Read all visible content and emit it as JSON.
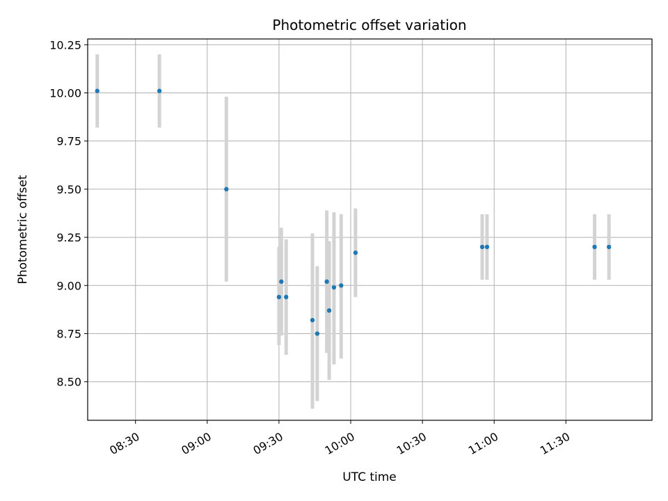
{
  "chart_data": {
    "type": "scatter",
    "title": "Photometric offset variation",
    "xlabel": "UTC time",
    "ylabel": "Photometric offset",
    "grid": true,
    "x_ticks": [
      "08:30",
      "09:00",
      "09:30",
      "10:00",
      "10:30",
      "11:00",
      "11:30"
    ],
    "y_ticks": [
      "8.50",
      "8.75",
      "9.00",
      "9.25",
      "9.50",
      "9.75",
      "10.00",
      "10.25"
    ],
    "xlim": [
      "08:10",
      "12:06"
    ],
    "ylim": [
      8.3,
      10.28
    ],
    "series": [
      {
        "points": [
          {
            "x": "08:14",
            "y": 10.01,
            "err_low": 9.82,
            "err_high": 10.2
          },
          {
            "x": "08:40",
            "y": 10.01,
            "err_low": 9.82,
            "err_high": 10.2
          },
          {
            "x": "09:08",
            "y": 9.5,
            "err_low": 9.02,
            "err_high": 9.98
          },
          {
            "x": "09:30",
            "y": 8.94,
            "err_low": 8.69,
            "err_high": 9.2
          },
          {
            "x": "09:31",
            "y": 9.02,
            "err_low": 8.74,
            "err_high": 9.3
          },
          {
            "x": "09:33",
            "y": 8.94,
            "err_low": 8.64,
            "err_high": 9.24
          },
          {
            "x": "09:44",
            "y": 8.82,
            "err_low": 8.36,
            "err_high": 9.27
          },
          {
            "x": "09:46",
            "y": 8.75,
            "err_low": 8.4,
            "err_high": 9.1
          },
          {
            "x": "09:50",
            "y": 9.02,
            "err_low": 8.65,
            "err_high": 9.39
          },
          {
            "x": "09:51",
            "y": 8.87,
            "err_low": 8.51,
            "err_high": 9.23
          },
          {
            "x": "09:53",
            "y": 8.99,
            "err_low": 8.59,
            "err_high": 9.38
          },
          {
            "x": "09:56",
            "y": 9.0,
            "err_low": 8.62,
            "err_high": 9.37
          },
          {
            "x": "10:02",
            "y": 9.17,
            "err_low": 8.94,
            "err_high": 9.4
          },
          {
            "x": "10:55",
            "y": 9.2,
            "err_low": 9.03,
            "err_high": 9.37
          },
          {
            "x": "10:57",
            "y": 9.2,
            "err_low": 9.03,
            "err_high": 9.37
          },
          {
            "x": "11:42",
            "y": 9.2,
            "err_low": 9.03,
            "err_high": 9.37
          },
          {
            "x": "11:48",
            "y": 9.2,
            "err_low": 9.03,
            "err_high": 9.37
          }
        ]
      }
    ],
    "colors": {
      "points": "#1f77b4",
      "errorbars": "#d3d3d3",
      "grid": "#b0b0b0"
    }
  }
}
